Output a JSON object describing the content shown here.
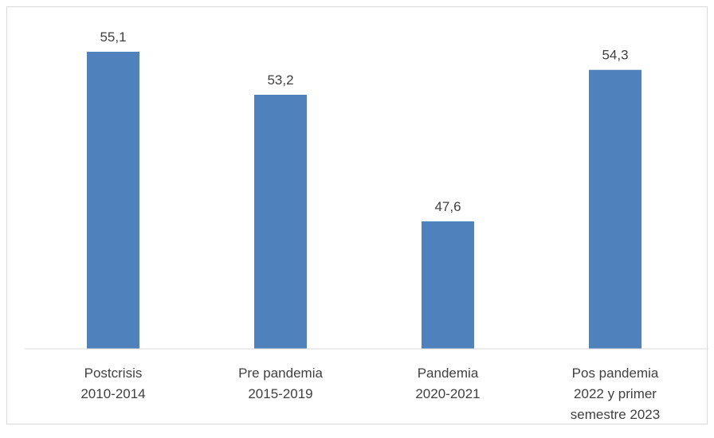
{
  "chart_data": {
    "type": "bar",
    "categories": [
      [
        "Postcrisis",
        "2010-2014"
      ],
      [
        "Pre pandemia",
        "2015-2019"
      ],
      [
        "Pandemia",
        "2020-2021"
      ],
      [
        "Pos pandemia",
        "2022 y primer",
        "semestre 2023"
      ]
    ],
    "values": [
      55.1,
      53.2,
      47.6,
      54.3
    ],
    "data_labels": [
      "55,1",
      "53,2",
      "47,6",
      "54,3"
    ],
    "title": "",
    "xlabel": "",
    "ylabel": "",
    "ylim": [
      40,
      56
    ],
    "grid": false,
    "legend": "none",
    "bar_color": "#4f81bd"
  }
}
